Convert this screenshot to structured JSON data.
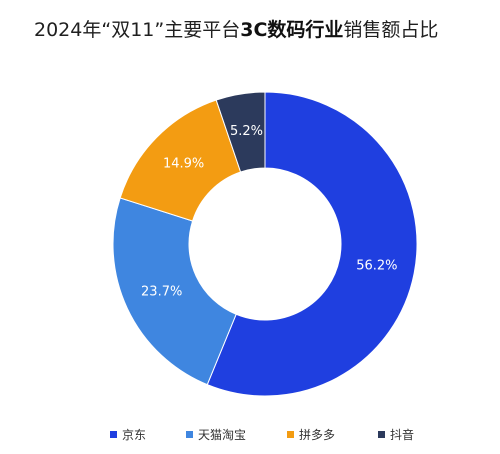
{
  "chart_data": {
    "type": "donut",
    "title_parts": [
      {
        "text": "2024年“双11”主要平台",
        "bold": false
      },
      {
        "text": "3C数码行业",
        "bold": true
      },
      {
        "text": "销售额占比",
        "bold": false
      }
    ],
    "unit": "%",
    "slices": [
      {
        "label": "京东",
        "value": 56.2,
        "display": "56.2%",
        "color": "#1f3fe0"
      },
      {
        "label": "天猫淘宝",
        "value": 23.7,
        "display": "23.7%",
        "color": "#3f86e0"
      },
      {
        "label": "拼多多",
        "value": 14.9,
        "display": "14.9%",
        "color": "#f39c12"
      },
      {
        "label": "抖音",
        "value": 5.2,
        "display": "5.2%",
        "color": "#2c3a5c"
      }
    ],
    "legend_position": "bottom"
  }
}
